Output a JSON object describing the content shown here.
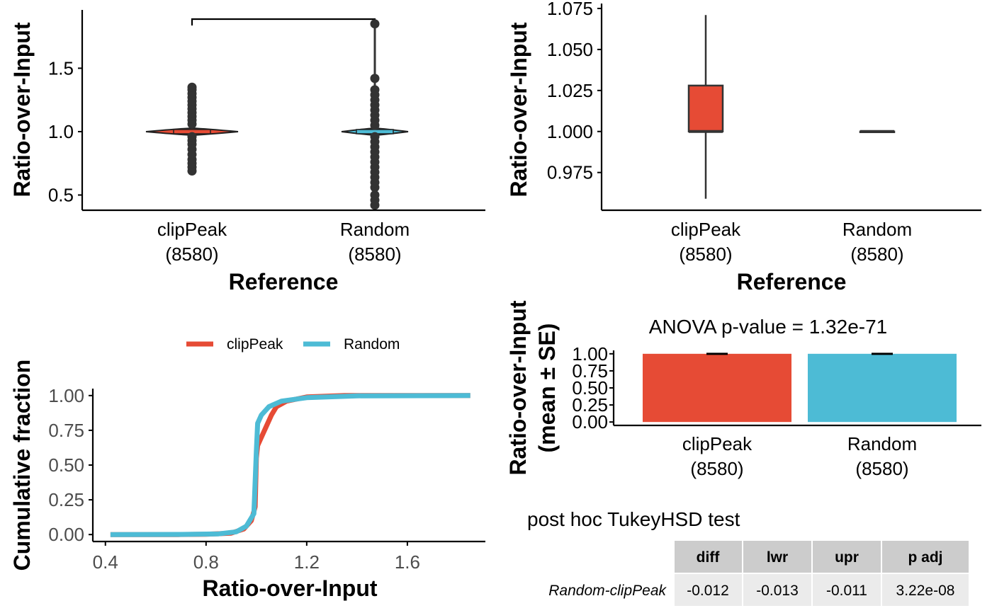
{
  "colors": {
    "clipPeak": "#E64B35",
    "Random": "#4DBBD5",
    "box_dark": "#333333"
  },
  "chart_data": [
    {
      "id": "violin",
      "type": "violin",
      "xlabel": "Reference",
      "ylabel": "Ratio-over-Input",
      "categories": [
        {
          "name": "clipPeak",
          "count": "(8580)"
        },
        {
          "name": "Random",
          "count": "(8580)"
        }
      ],
      "yticks": [
        0.5,
        1.0,
        1.5
      ],
      "ytick_labels": [
        "0.5",
        "1.0",
        "1.5"
      ],
      "ylim": [
        0.38,
        1.96
      ],
      "series": [
        {
          "name": "clipPeak",
          "min": 0.69,
          "max": 1.35,
          "median": 1.0,
          "outliers": [
            0.69,
            0.72,
            0.75,
            0.78,
            0.82,
            0.86,
            0.9,
            0.93,
            0.96,
            1.06,
            1.09,
            1.12,
            1.15,
            1.18,
            1.21,
            1.24,
            1.27,
            1.3,
            1.33,
            1.35
          ]
        },
        {
          "name": "Random",
          "min": 0.42,
          "max": 1.85,
          "median": 1.0,
          "outliers": [
            0.42,
            0.46,
            0.5,
            0.56,
            0.6,
            0.64,
            0.68,
            0.72,
            0.76,
            0.8,
            0.84,
            0.88,
            0.92,
            0.96,
            1.05,
            1.09,
            1.13,
            1.17,
            1.21,
            1.25,
            1.29,
            1.33,
            1.42,
            1.85
          ]
        }
      ],
      "significance_bracket": true
    },
    {
      "id": "boxplot",
      "type": "box",
      "xlabel": "Reference",
      "ylabel": "Ratio-over-Input",
      "categories": [
        {
          "name": "clipPeak",
          "count": "(8580)"
        },
        {
          "name": "Random",
          "count": "(8580)"
        }
      ],
      "yticks": [
        0.975,
        1.0,
        1.025,
        1.05,
        1.075
      ],
      "ytick_labels": [
        "0.975",
        "1.000",
        "1.025",
        "1.050",
        "1.075"
      ],
      "ylim": [
        0.952,
        1.078
      ],
      "series": [
        {
          "name": "clipPeak",
          "lower_whisker": 0.959,
          "q1": 1.0,
          "median": 1.0,
          "q3": 1.028,
          "upper_whisker": 1.071
        },
        {
          "name": "Random",
          "lower_whisker": 1.0,
          "q1": 1.0,
          "median": 1.0,
          "q3": 1.0,
          "upper_whisker": 1.0
        }
      ]
    },
    {
      "id": "ecdf",
      "type": "line",
      "xlabel": "Ratio-over-Input",
      "ylabel": "Cumulative fraction",
      "xticks": [
        0.4,
        0.8,
        1.2,
        1.6
      ],
      "xtick_labels": [
        "0.4",
        "0.8",
        "1.2",
        "1.6"
      ],
      "yticks": [
        0.0,
        0.25,
        0.5,
        0.75,
        1.0
      ],
      "ytick_labels": [
        "0.00",
        "0.25",
        "0.50",
        "0.75",
        "1.00"
      ],
      "xlim": [
        0.35,
        1.91
      ],
      "ylim": [
        -0.05,
        1.05
      ],
      "legend": {
        "position": "top",
        "entries": [
          "clipPeak",
          "Random"
        ]
      },
      "series": [
        {
          "name": "clipPeak",
          "x": [
            0.69,
            0.8,
            0.9,
            0.95,
            0.98,
            0.995,
            1.0,
            1.005,
            1.02,
            1.04,
            1.06,
            1.08,
            1.12,
            1.2,
            1.35
          ],
          "y": [
            0.0,
            0.002,
            0.01,
            0.04,
            0.1,
            0.2,
            0.55,
            0.64,
            0.7,
            0.78,
            0.86,
            0.92,
            0.96,
            0.99,
            1.0
          ]
        },
        {
          "name": "Random",
          "x": [
            0.42,
            0.7,
            0.85,
            0.92,
            0.96,
            0.99,
            1.0,
            1.005,
            1.02,
            1.05,
            1.1,
            1.2,
            1.4,
            1.85
          ],
          "y": [
            0.0,
            0.001,
            0.005,
            0.02,
            0.06,
            0.15,
            0.6,
            0.8,
            0.86,
            0.92,
            0.96,
            0.985,
            0.998,
            1.0
          ]
        }
      ]
    },
    {
      "id": "barplot",
      "type": "bar",
      "title": "ANOVA p-value = 1.32e-71",
      "xlabel": "",
      "ylabel": "Ratio-over-Input",
      "ylabel2": "(mean ± SE)",
      "categories": [
        {
          "name": "clipPeak",
          "count": "(8580)"
        },
        {
          "name": "Random",
          "count": "(8580)"
        }
      ],
      "yticks": [
        0.0,
        0.25,
        0.5,
        0.75,
        1.0
      ],
      "ytick_labels": [
        "0.00",
        "0.25",
        "0.50",
        "0.75",
        "1.00"
      ],
      "ylim": [
        -0.05,
        1.05
      ],
      "values": [
        1.01,
        1.0
      ],
      "se": [
        0.002,
        0.001
      ]
    }
  ],
  "tukey": {
    "title": "post hoc TukeyHSD test",
    "columns": [
      "diff",
      "lwr",
      "upr",
      "p adj"
    ],
    "rows": [
      {
        "label": "Random-clipPeak",
        "values": [
          "-0.012",
          "-0.013",
          "-0.011",
          "3.22e-08"
        ]
      }
    ]
  }
}
